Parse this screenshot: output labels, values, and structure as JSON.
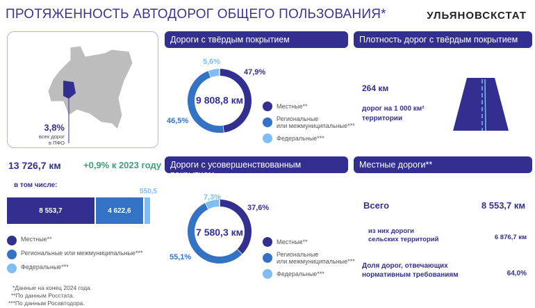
{
  "header": {
    "title": "ПРОТЯЖЕННОСТЬ АВТОДОРОГ ОБЩЕГО ПОЛЬЗОВАНИЯ*",
    "brand": "УЛЬЯНОВСКСТАТ"
  },
  "colors": {
    "local": "#332f91",
    "regional": "#3372c4",
    "federal": "#7fbdf7"
  },
  "map": {
    "share": "3,8%",
    "caption1": "всех дорог",
    "caption2": "в ПФО"
  },
  "total": {
    "value": "13 726,7 км",
    "change": "+0,9% к 2023 году",
    "including": "в том числе:",
    "bars": [
      {
        "label": "8 553,7",
        "value": 8553.7
      },
      {
        "label": "4 622,6",
        "value": 4622.6
      },
      {
        "label": "550,5",
        "value": 550.5
      }
    ]
  },
  "legend": {
    "local": "Местные**",
    "regional": "Региональные или межмуниципальные***",
    "regional_l1": "Региональные",
    "regional_l2": "или межмуниципальные***",
    "federal": "Федеральные***"
  },
  "hard": {
    "title": "Дороги с твёрдым покрытием",
    "total": "9 808,8 км",
    "slices": [
      {
        "label": "47,9%",
        "value": 47.9
      },
      {
        "label": "46,5%",
        "value": 46.5
      },
      {
        "label": "5,6%",
        "value": 5.6
      }
    ]
  },
  "improved": {
    "title": "Дороги с усовершенствованным покрытием",
    "total": "7 580,3 км",
    "slices": [
      {
        "label": "37,6%",
        "value": 37.6
      },
      {
        "label": "55,1%",
        "value": 55.1
      },
      {
        "label": "7,3%",
        "value": 7.3
      }
    ]
  },
  "density": {
    "title": "Плотность дорог с твёрдым покрытием",
    "value": "264 км",
    "line1": "дорог на 1 000 км²",
    "line2": "территории"
  },
  "local": {
    "title": "Местные дороги**",
    "all_label": "Всего",
    "all_value": "8 553,7 км",
    "rural_l1": "из них дороги",
    "rural_l2": "сельских территорий",
    "rural_value": "6 876,7 км",
    "norm_l1": "Доля дорог, отвечающих",
    "norm_l2": "нормативным требованиям",
    "norm_value": "64,0%"
  },
  "footnotes": [
    "*Данные на конец 2024 года.",
    "**По данным Росстата.",
    "***По данным Росавтодора."
  ]
}
